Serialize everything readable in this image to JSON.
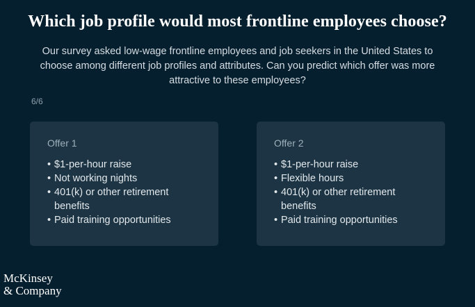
{
  "header": {
    "title": "Which job profile would most frontline employees choose?",
    "subtitle": "Our survey asked low-wage frontline employees and job seekers in the United States to choose among different job profiles and attributes. Can you predict which offer was more attractive to these employees?"
  },
  "progress": {
    "counter": "6/6"
  },
  "offers": [
    {
      "title": "Offer 1",
      "items": [
        "$1-per-hour raise",
        "Not working nights",
        "401(k) or other retirement benefits",
        "Paid training opportunities"
      ]
    },
    {
      "title": "Offer 2",
      "items": [
        "$1-per-hour raise",
        "Flexible hours",
        "401(k) or other retirement benefits",
        "Paid training opportunities"
      ]
    }
  ],
  "bullet": "•",
  "logo": {
    "line1": "McKinsey",
    "line2": "& Company"
  }
}
